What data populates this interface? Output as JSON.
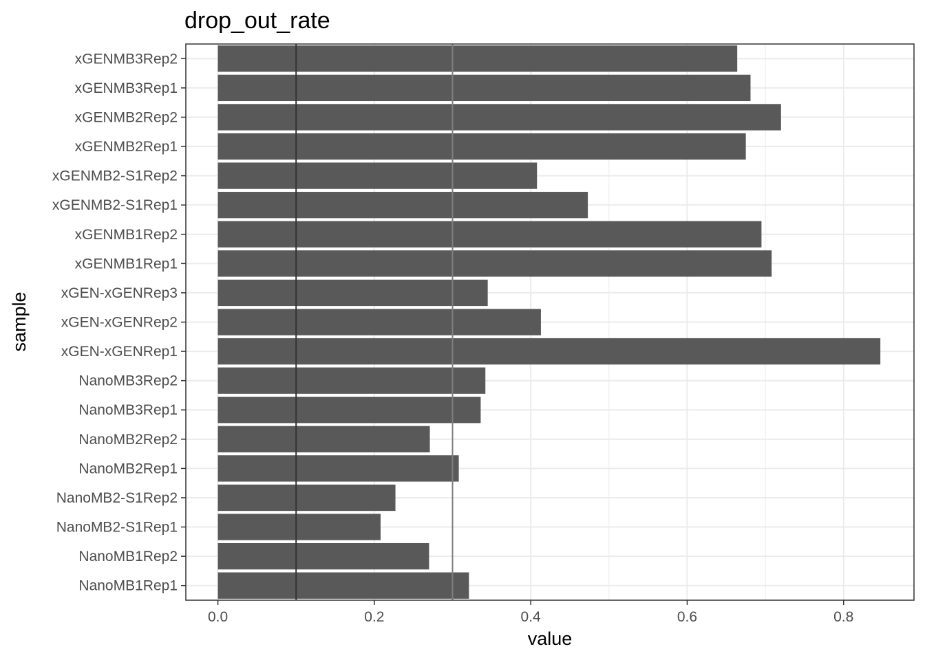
{
  "chart_data": {
    "type": "bar",
    "orientation": "horizontal",
    "title": "drop_out_rate",
    "xlabel": "value",
    "ylabel": "sample",
    "xlim": [
      -0.041,
      0.89
    ],
    "xticks": [
      0.0,
      0.2,
      0.4,
      0.6,
      0.8
    ],
    "xtick_labels": [
      "0.0",
      "0.2",
      "0.4",
      "0.6",
      "0.8"
    ],
    "grid": true,
    "theme": "bw",
    "bar_color": "#595959",
    "categories": [
      "NanoMB1Rep1",
      "NanoMB1Rep2",
      "NanoMB2-S1Rep1",
      "NanoMB2-S1Rep2",
      "NanoMB2Rep1",
      "NanoMB2Rep2",
      "NanoMB3Rep1",
      "NanoMB3Rep2",
      "xGEN-xGENRep1",
      "xGEN-xGENRep2",
      "xGEN-xGENRep3",
      "xGENMB1Rep1",
      "xGENMB1Rep2",
      "xGENMB2-S1Rep1",
      "xGENMB2-S1Rep2",
      "xGENMB2Rep1",
      "xGENMB2Rep2",
      "xGENMB3Rep1",
      "xGENMB3Rep2"
    ],
    "values": [
      0.321,
      0.27,
      0.208,
      0.227,
      0.308,
      0.271,
      0.336,
      0.342,
      0.847,
      0.413,
      0.345,
      0.708,
      0.695,
      0.473,
      0.408,
      0.675,
      0.72,
      0.681,
      0.664
    ],
    "reference_lines": [
      {
        "x": 0.1,
        "color": "#333333"
      },
      {
        "x": 0.3,
        "color": "#7f7f7f"
      }
    ]
  }
}
